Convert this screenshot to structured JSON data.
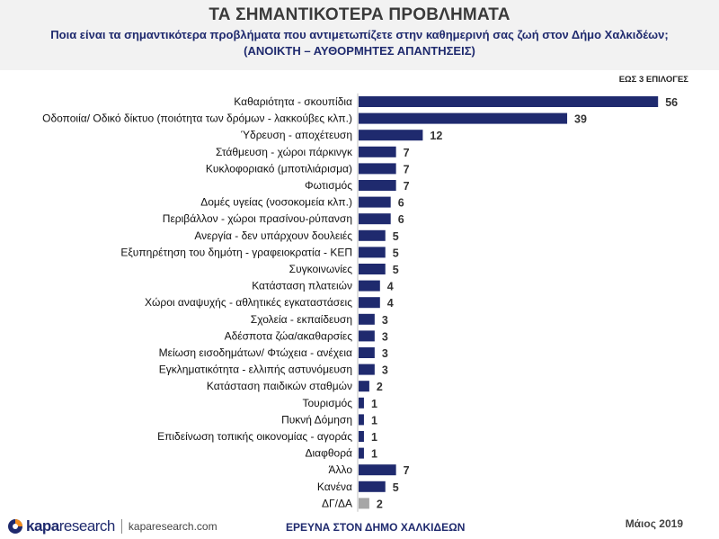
{
  "header": {
    "title": "ΤΑ ΣΗΜΑΝΤΙΚΟΤΕΡΑ ΠΡΟΒΛΗΜΑΤΑ",
    "subtitle_line1": "Ποια είναι τα σημαντικότερα προβλήματα που αντιμετωπίζετε στην καθημερινή σας ζωή στον Δήμο Χαλκιδέων;",
    "subtitle_line2": "(ΑΝΟΙΚΤΗ – ΑΥΘΟΡΜΗΤΕΣ ΑΠΑΝΤΗΣΕΙΣ)",
    "choices_note": "ΕΩΣ 3 ΕΠΙΛΟΓΕΣ"
  },
  "chart_data": {
    "type": "bar",
    "orientation": "horizontal",
    "title": "ΤΑ ΣΗΜΑΝΤΙΚΟΤΕΡΑ ΠΡΟΒΛΗΜΑΤΑ",
    "xlabel": "",
    "ylabel": "",
    "xlim": [
      0,
      56
    ],
    "grid": false,
    "categories": [
      "Καθαριότητα - σκουπίδια",
      "Οδοποιία/ Οδικό δίκτυο (ποιότητα των δρόμων - λακκούβες κλπ.)",
      "Ύδρευση - αποχέτευση",
      "Στάθμευση - χώροι πάρκινγκ",
      "Κυκλοφοριακό (μποτιλιάρισμα)",
      "Φωτισμός",
      "Δομές υγείας (νοσοκομεία κλπ.)",
      "Περιβάλλον - χώροι πρασίνου-ρύπανση",
      "Ανεργία - δεν υπάρχουν δουλειές",
      "Εξυπηρέτηση του δημότη - γραφειοκρατία - ΚΕΠ",
      "Συγκοινωνίες",
      "Κατάσταση πλατειών",
      "Χώροι αναψυχής - αθλητικές εγκαταστάσεις",
      "Σχολεία - εκπαίδευση",
      "Αδέσποτα ζώα/ακαθαρσίες",
      "Μείωση εισοδημάτων/ Φτώχεια - ανέχεια",
      "Εγκληματικότητα - ελλιπής αστυνόμευση",
      "Κατάσταση παιδικών σταθμών",
      "Τουρισμός",
      "Πυκνή Δόμηση",
      "Επιδείνωση τοπικής οικονομίας - αγοράς",
      "Διαφθορά",
      "Άλλο",
      "Κανένα",
      "ΔΓ/ΔΑ"
    ],
    "values": [
      56,
      39,
      12,
      7,
      7,
      7,
      6,
      6,
      5,
      5,
      5,
      4,
      4,
      3,
      3,
      3,
      3,
      2,
      1,
      1,
      1,
      1,
      7,
      5,
      2
    ],
    "bar_colors": [
      "#1f2a6e",
      "#1f2a6e",
      "#1f2a6e",
      "#1f2a6e",
      "#1f2a6e",
      "#1f2a6e",
      "#1f2a6e",
      "#1f2a6e",
      "#1f2a6e",
      "#1f2a6e",
      "#1f2a6e",
      "#1f2a6e",
      "#1f2a6e",
      "#1f2a6e",
      "#1f2a6e",
      "#1f2a6e",
      "#1f2a6e",
      "#1f2a6e",
      "#1f2a6e",
      "#1f2a6e",
      "#1f2a6e",
      "#1f2a6e",
      "#1f2a6e",
      "#1f2a6e",
      "#a6a6a6"
    ]
  },
  "footer": {
    "logo_kapa": "kapa",
    "logo_research": "research",
    "site": "kaparesearch.com",
    "survey": "ΕΡΕΥΝΑ ΣΤΟΝ ΔΗΜΟ ΧΑΛΚΙΔΕΩΝ",
    "date": "Μάιος 2019"
  },
  "colors": {
    "bar": "#1f2a6e",
    "bar_na": "#a6a6a6",
    "logo_accent": "#f28c1e"
  }
}
